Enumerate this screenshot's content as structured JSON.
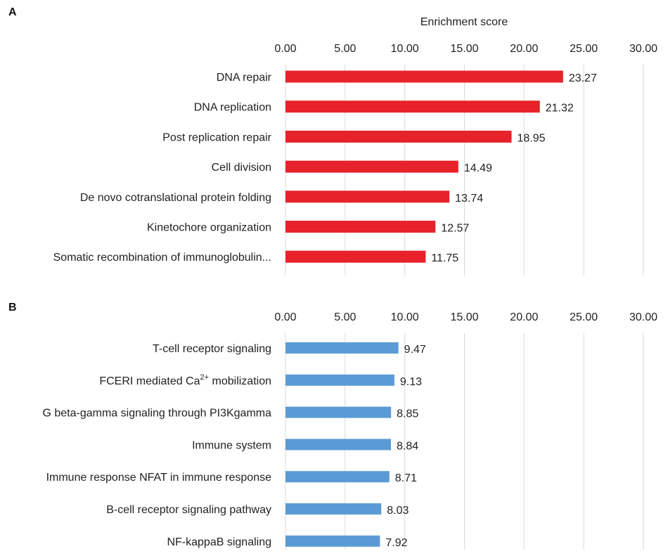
{
  "chart_data": [
    {
      "type": "bar",
      "orientation": "horizontal",
      "panel": "A",
      "xlabel": "Enrichment score",
      "xlim": [
        0,
        30
      ],
      "tick_labels": [
        "0.00",
        "5.00",
        "10.00",
        "15.00",
        "20.00",
        "25.00",
        "30.00"
      ],
      "grid": true,
      "color": "#e8222a",
      "categories": [
        "DNA repair",
        "DNA replication",
        "Post replication repair",
        "Cell division",
        "De novo cotranslational protein folding",
        "Kinetochore organization",
        "Somatic recombination of immunoglobulin..."
      ],
      "values": [
        23.27,
        21.32,
        18.95,
        14.49,
        13.74,
        12.57,
        11.75
      ],
      "value_labels": [
        "23.27",
        "21.32",
        "18.95",
        "14.49",
        "13.74",
        "12.57",
        "11.75"
      ]
    },
    {
      "type": "bar",
      "orientation": "horizontal",
      "panel": "B",
      "xlim": [
        0,
        30
      ],
      "tick_labels": [
        "0.00",
        "5.00",
        "10.00",
        "15.00",
        "20.00",
        "25.00",
        "30.00"
      ],
      "grid": true,
      "color": "#5b9bd5",
      "categories": [
        "T-cell receptor signaling",
        "FCERI mediated Ca2+ mobilization",
        "G beta-gamma signaling through PI3Kgamma",
        "Immune system",
        "Immune response NFAT in immune response",
        "B-cell receptor signaling pathway",
        "NF-kappaB signaling"
      ],
      "values": [
        9.47,
        9.13,
        8.85,
        8.84,
        8.71,
        8.03,
        7.92
      ],
      "value_labels": [
        "9.47",
        "9.13",
        "8.85",
        "8.84",
        "8.71",
        "8.03",
        "7.92"
      ]
    }
  ]
}
